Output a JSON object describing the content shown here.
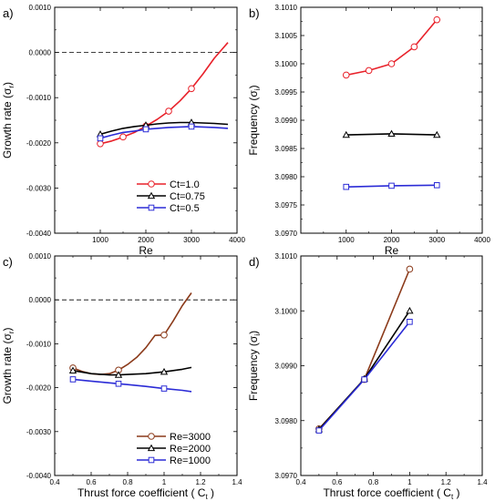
{
  "chart_data": [
    {
      "panel_label": "a)",
      "type": "line",
      "xlabel": "Re",
      "ylabel": "Growth rate (σ",
      "ylabel_sub": "r",
      "ylabel_tail": ")",
      "xlim": [
        0,
        4000
      ],
      "ylim": [
        -0.004,
        0.001
      ],
      "xticks": [
        {
          "v": 1000,
          "label": "1000"
        },
        {
          "v": 2000,
          "label": "2000"
        },
        {
          "v": 3000,
          "label": "3000"
        },
        {
          "v": 4000,
          "label": "4000"
        }
      ],
      "yticks": [
        {
          "v": 0.001,
          "label": "0.0010"
        },
        {
          "v": 0,
          "label": "0.0000"
        },
        {
          "v": -0.001,
          "label": "-0.0010"
        },
        {
          "v": -0.002,
          "label": "-0.0020"
        },
        {
          "v": -0.003,
          "label": "-0.0030"
        },
        {
          "v": -0.004,
          "label": "-0.0040"
        }
      ],
      "ref_line": 0,
      "legend": {
        "position": "bottom-right"
      },
      "series": [
        {
          "name": "Ct=1.0",
          "color": "#e8212a",
          "marker": "circle",
          "curve_x": [
            1000,
            1250,
            1500,
            1750,
            2000,
            2250,
            2500,
            2750,
            3000,
            3250,
            3500,
            3800
          ],
          "curve_y": [
            -0.00202,
            -0.00196,
            -0.00187,
            -0.00177,
            -0.00163,
            -0.00148,
            -0.0013,
            -0.00107,
            -0.0008,
            -0.00048,
            -0.00013,
            0.00022
          ],
          "marker_x": [
            1000,
            1500,
            2000,
            2500,
            3000
          ],
          "marker_y": [
            -0.00202,
            -0.00187,
            -0.00163,
            -0.0013,
            -0.0008
          ]
        },
        {
          "name": "Ct=0.75",
          "color": "#000000",
          "marker": "triangle",
          "curve_x": [
            1000,
            1250,
            1500,
            1750,
            2000,
            2250,
            2500,
            2750,
            3000,
            3250,
            3500,
            3800
          ],
          "curve_y": [
            -0.00181,
            -0.00174,
            -0.00168,
            -0.00164,
            -0.00161,
            -0.00158,
            -0.00156,
            -0.00155,
            -0.00155,
            -0.00156,
            -0.00157,
            -0.00159
          ],
          "marker_x": [
            1000,
            2000,
            3000
          ],
          "marker_y": [
            -0.00181,
            -0.00161,
            -0.00155
          ]
        },
        {
          "name": "Ct=0.5",
          "color": "#2b2bd6",
          "marker": "square",
          "curve_x": [
            1000,
            1250,
            1500,
            1750,
            2000,
            2250,
            2500,
            2750,
            3000,
            3250,
            3500,
            3800
          ],
          "curve_y": [
            -0.0019,
            -0.00183,
            -0.00177,
            -0.00174,
            -0.0017,
            -0.00168,
            -0.00166,
            -0.00165,
            -0.00164,
            -0.00165,
            -0.00166,
            -0.00168
          ],
          "marker_x": [
            1000,
            2000,
            3000
          ],
          "marker_y": [
            -0.0019,
            -0.0017,
            -0.00164
          ]
        }
      ]
    },
    {
      "panel_label": "b)",
      "type": "line",
      "xlabel": "Re",
      "ylabel": "Frequency (σ",
      "ylabel_sub": "i",
      "ylabel_tail": ")",
      "xlim": [
        0,
        4000
      ],
      "ylim": [
        3.097,
        3.101
      ],
      "xticks": [
        {
          "v": 1000,
          "label": "1000"
        },
        {
          "v": 2000,
          "label": "2000"
        },
        {
          "v": 3000,
          "label": "3000"
        },
        {
          "v": 4000,
          "label": "4000"
        }
      ],
      "yticks": [
        {
          "v": 3.101,
          "label": "3.1010"
        },
        {
          "v": 3.1005,
          "label": "3.1005"
        },
        {
          "v": 3.1,
          "label": "3.1000"
        },
        {
          "v": 3.0995,
          "label": "3.0995"
        },
        {
          "v": 3.099,
          "label": "3.0990"
        },
        {
          "v": 3.0985,
          "label": "3.0985"
        },
        {
          "v": 3.098,
          "label": "3.0980"
        },
        {
          "v": 3.0975,
          "label": "3.0975"
        },
        {
          "v": 3.097,
          "label": "3.0970"
        }
      ],
      "series": [
        {
          "color": "#e8212a",
          "marker": "circle",
          "curve_x": [
            1000,
            1500,
            2000,
            2500,
            3000
          ],
          "curve_y": [
            3.0998,
            3.09988,
            3.1,
            3.1003,
            3.10078
          ],
          "marker_x": [
            1000,
            1500,
            2000,
            2500,
            3000
          ],
          "marker_y": [
            3.0998,
            3.09988,
            3.1,
            3.1003,
            3.10078
          ]
        },
        {
          "color": "#000000",
          "marker": "triangle",
          "curve_x": [
            1000,
            2000,
            3000
          ],
          "curve_y": [
            3.09874,
            3.09876,
            3.09874
          ],
          "marker_x": [
            1000,
            2000,
            3000
          ],
          "marker_y": [
            3.09874,
            3.09876,
            3.09874
          ]
        },
        {
          "color": "#2b2bd6",
          "marker": "square",
          "curve_x": [
            1000,
            2000,
            3000
          ],
          "curve_y": [
            3.09782,
            3.09784,
            3.09785
          ],
          "marker_x": [
            1000,
            2000,
            3000
          ],
          "marker_y": [
            3.09782,
            3.09784,
            3.09785
          ]
        }
      ]
    },
    {
      "panel_label": "c)",
      "type": "line",
      "xlabel": "Thrust force coefficient ( C",
      "xlabel_sub": "t",
      "xlabel_tail": " )",
      "ylabel": "Growth rate (σ",
      "ylabel_sub": "r",
      "ylabel_tail": ")",
      "xlim": [
        0.4,
        1.4
      ],
      "ylim": [
        -0.004,
        0.001
      ],
      "xticks": [
        {
          "v": 0.4,
          "label": "0.4"
        },
        {
          "v": 0.6,
          "label": "0.6"
        },
        {
          "v": 0.8,
          "label": "0.8"
        },
        {
          "v": 1.0,
          "label": "1"
        },
        {
          "v": 1.2,
          "label": "1.2"
        },
        {
          "v": 1.4,
          "label": "1.4"
        }
      ],
      "yticks": [
        {
          "v": 0.001,
          "label": "0.0010"
        },
        {
          "v": 0,
          "label": "0.0000"
        },
        {
          "v": -0.001,
          "label": "-0.0010"
        },
        {
          "v": -0.002,
          "label": "-0.0020"
        },
        {
          "v": -0.003,
          "label": "-0.0030"
        },
        {
          "v": -0.004,
          "label": "-0.0040"
        }
      ],
      "ref_line": 0,
      "legend": {
        "position": "bottom-right"
      },
      "series": [
        {
          "name": "Re=3000",
          "color": "#8b3a1a",
          "marker": "circle",
          "curve_x": [
            0.5,
            0.55,
            0.6,
            0.65,
            0.7,
            0.75,
            0.8,
            0.85,
            0.9,
            0.95,
            1.0,
            1.05,
            1.1,
            1.15
          ],
          "curve_y": [
            -0.00155,
            -0.00163,
            -0.00168,
            -0.0017,
            -0.00168,
            -0.0016,
            -0.00147,
            -0.00131,
            -0.00109,
            -0.00081,
            -0.0008,
            -0.00048,
            -0.00013,
            0.00016
          ],
          "marker_x": [
            0.5,
            0.75,
            1.0
          ],
          "marker_y": [
            -0.00155,
            -0.0016,
            -0.0008
          ]
        },
        {
          "name": "Re=2000",
          "color": "#000000",
          "marker": "triangle",
          "curve_x": [
            0.5,
            0.6,
            0.7,
            0.75,
            0.8,
            0.9,
            1.0,
            1.05,
            1.1,
            1.15
          ],
          "curve_y": [
            -0.00161,
            -0.00168,
            -0.00171,
            -0.00171,
            -0.0017,
            -0.00168,
            -0.00164,
            -0.00161,
            -0.00158,
            -0.00154
          ],
          "marker_x": [
            0.5,
            0.75,
            1.0
          ],
          "marker_y": [
            -0.00161,
            -0.00171,
            -0.00164
          ]
        },
        {
          "name": "Re=1000",
          "color": "#2b2bd6",
          "marker": "square",
          "curve_x": [
            0.5,
            0.6,
            0.7,
            0.75,
            0.8,
            0.9,
            1.0,
            1.1,
            1.15
          ],
          "curve_y": [
            -0.00181,
            -0.00185,
            -0.00189,
            -0.00191,
            -0.00193,
            -0.00197,
            -0.00202,
            -0.00206,
            -0.00209
          ],
          "marker_x": [
            0.5,
            0.75,
            1.0
          ],
          "marker_y": [
            -0.00181,
            -0.00191,
            -0.00202
          ]
        }
      ]
    },
    {
      "panel_label": "d)",
      "type": "line",
      "xlabel": "Thrust force coefficient ( C",
      "xlabel_sub": "t",
      "xlabel_tail": " )",
      "ylabel": "Frequency (σ",
      "ylabel_sub": "i",
      "ylabel_tail": ")",
      "xlim": [
        0.4,
        1.4
      ],
      "ylim": [
        3.097,
        3.101
      ],
      "xticks": [
        {
          "v": 0.4,
          "label": "0.4"
        },
        {
          "v": 0.6,
          "label": "0.6"
        },
        {
          "v": 0.8,
          "label": "0.8"
        },
        {
          "v": 1.0,
          "label": "1"
        },
        {
          "v": 1.2,
          "label": "1.2"
        },
        {
          "v": 1.4,
          "label": "1.4"
        }
      ],
      "yticks": [
        {
          "v": 3.101,
          "label": "3.1010"
        },
        {
          "v": 3.1,
          "label": "3.1000"
        },
        {
          "v": 3.099,
          "label": "3.0990"
        },
        {
          "v": 3.098,
          "label": "3.0980"
        },
        {
          "v": 3.097,
          "label": "3.0970"
        }
      ],
      "series": [
        {
          "color": "#8b3a1a",
          "marker": "circle",
          "curve_x": [
            0.5,
            0.75,
            1.0
          ],
          "curve_y": [
            3.09785,
            3.09875,
            3.10076
          ],
          "marker_x": [
            0.5,
            0.75,
            1.0
          ],
          "marker_y": [
            3.09785,
            3.09875,
            3.10076
          ]
        },
        {
          "color": "#000000",
          "marker": "triangle",
          "curve_x": [
            0.5,
            0.75,
            1.0
          ],
          "curve_y": [
            3.09784,
            3.09876,
            3.1
          ],
          "marker_x": [
            0.5,
            0.75,
            1.0
          ],
          "marker_y": [
            3.09784,
            3.09876,
            3.1
          ]
        },
        {
          "color": "#2b2bd6",
          "marker": "square",
          "curve_x": [
            0.5,
            0.75,
            1.0
          ],
          "curve_y": [
            3.09782,
            3.09875,
            3.0998
          ],
          "marker_x": [
            0.5,
            0.75,
            1.0
          ],
          "marker_y": [
            3.09782,
            3.09875,
            3.0998
          ]
        }
      ]
    }
  ]
}
